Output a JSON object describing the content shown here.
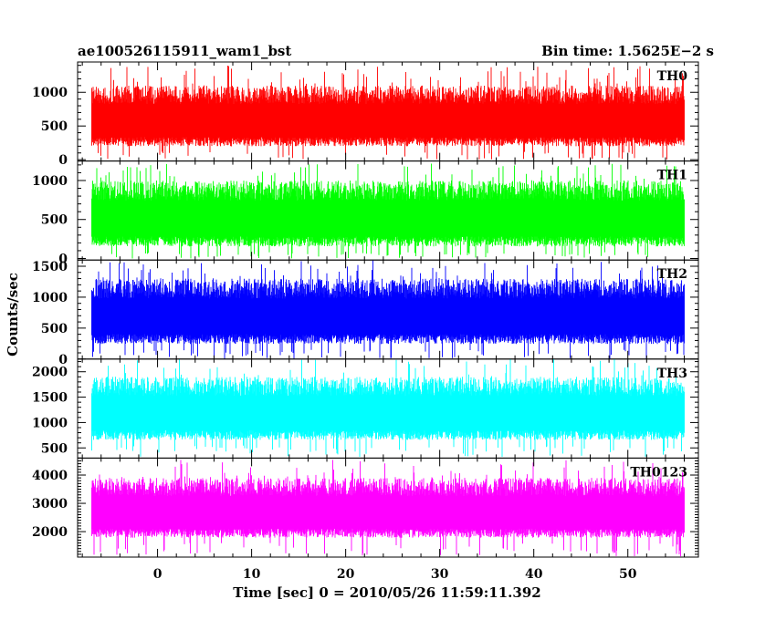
{
  "chart_data": {
    "type": "line",
    "title_left": "ae100526115911_wam1_bst",
    "title_right": "Bin time: 1.5625E−2 s",
    "xlabel": "Time [sec] 0 = 2010/05/26 11:59:11.392",
    "ylabel": "Counts/sec",
    "xlim": [
      -8.5,
      57.5
    ],
    "x_ticks": [
      0,
      10,
      20,
      30,
      40,
      50
    ],
    "x_tick_labels": [
      "0",
      "10",
      "20",
      "30",
      "40",
      "50"
    ],
    "data_x_range": [
      -7.0,
      56.0
    ],
    "grid": false,
    "series": [
      {
        "name": "TH0",
        "color": "#ff0000",
        "ylim": [
          -20,
          1450
        ],
        "y_ticks": [
          0,
          500,
          1000
        ],
        "y_tick_labels": [
          "0",
          "500",
          "1000"
        ],
        "typical_range": [
          120,
          1100
        ],
        "peak_range": [
          0,
          1400
        ]
      },
      {
        "name": "TH1",
        "color": "#00ff00",
        "ylim": [
          -20,
          1250
        ],
        "y_ticks": [
          0,
          500,
          1000
        ],
        "y_tick_labels": [
          "0",
          "500",
          "1000"
        ],
        "typical_range": [
          80,
          1000
        ],
        "peak_range": [
          0,
          1220
        ]
      },
      {
        "name": "TH2",
        "color": "#0000ff",
        "ylim": [
          0,
          1600
        ],
        "y_ticks": [
          0,
          500,
          1000,
          1500
        ],
        "y_tick_labels": [
          "0",
          "500",
          "1000",
          "1500"
        ],
        "typical_range": [
          150,
          1300
        ],
        "peak_range": [
          0,
          1600
        ]
      },
      {
        "name": "TH3",
        "color": "#00ffff",
        "ylim": [
          300,
          2250
        ],
        "y_ticks": [
          500,
          1000,
          1500,
          2000
        ],
        "y_tick_labels": [
          "500",
          "1000",
          "1500",
          "2000"
        ],
        "typical_range": [
          550,
          1900
        ],
        "peak_range": [
          320,
          2250
        ]
      },
      {
        "name": "TH0123",
        "color": "#ff00ff",
        "ylim": [
          1100,
          4600
        ],
        "y_ticks": [
          2000,
          3000,
          4000
        ],
        "y_tick_labels": [
          "2000",
          "3000",
          "4000"
        ],
        "typical_range": [
          1600,
          3900
        ],
        "peak_range": [
          1120,
          4550
        ]
      }
    ]
  }
}
